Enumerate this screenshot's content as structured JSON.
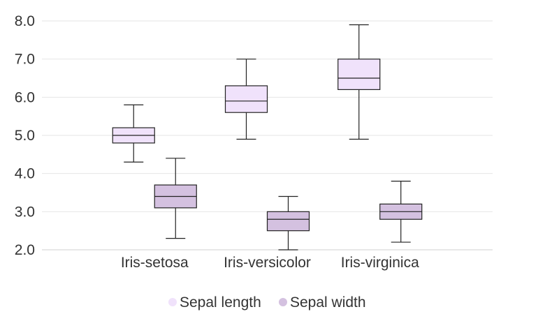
{
  "chart_data": {
    "type": "boxplot",
    "categories": [
      "Iris-setosa",
      "Iris-versicolor",
      "Iris-virginica"
    ],
    "ylim": [
      2.0,
      8.0
    ],
    "yticks": [
      "2.0",
      "3.0",
      "4.0",
      "5.0",
      "6.0",
      "7.0",
      "8.0"
    ],
    "grid": true,
    "legend_position": "bottom",
    "series": [
      {
        "name": "Sepal length",
        "color": "#f0e2fb",
        "boxes": [
          {
            "min": 4.3,
            "q1": 4.8,
            "median": 5.0,
            "q3": 5.2,
            "max": 5.8
          },
          {
            "min": 4.9,
            "q1": 5.6,
            "median": 5.9,
            "q3": 6.3,
            "max": 7.0
          },
          {
            "min": 4.9,
            "q1": 6.2,
            "median": 6.5,
            "q3": 7.0,
            "max": 7.9
          }
        ]
      },
      {
        "name": "Sepal width",
        "color": "#d4c1e0",
        "boxes": [
          {
            "min": 2.3,
            "q1": 3.1,
            "median": 3.4,
            "q3": 3.7,
            "max": 4.4
          },
          {
            "min": 2.0,
            "q1": 2.5,
            "median": 2.8,
            "q3": 3.0,
            "max": 3.4
          },
          {
            "min": 2.2,
            "q1": 2.8,
            "median": 3.0,
            "q3": 3.2,
            "max": 3.8
          }
        ]
      }
    ]
  }
}
